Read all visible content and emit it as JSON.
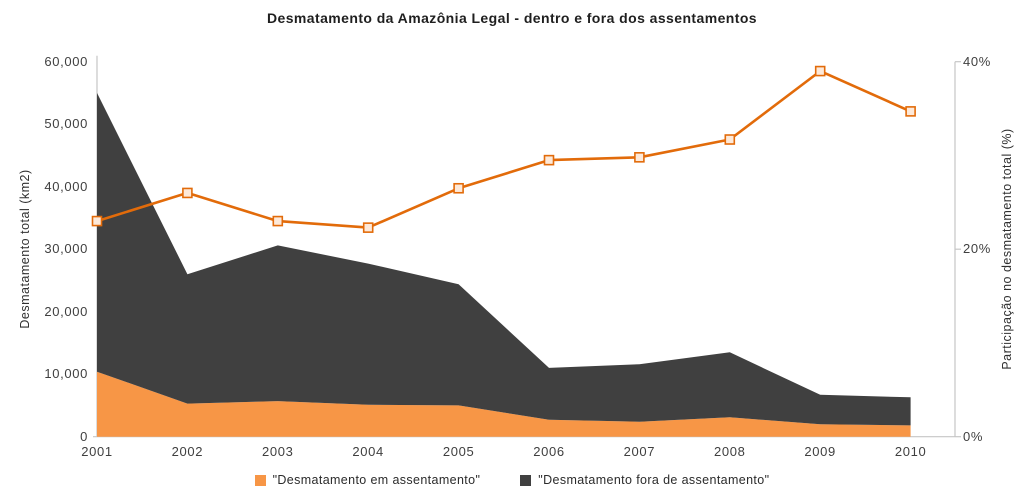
{
  "title": "Desmatamento da Amazônia Legal - dentro e fora dos assentamentos",
  "axes": {
    "left": {
      "title": "Desmatamento total (km2)",
      "ticks": [
        "60,000",
        "50,000",
        "40,000",
        "30,000",
        "20,000",
        "10,000",
        "0"
      ],
      "tick_values": [
        60000,
        50000,
        40000,
        30000,
        20000,
        10000,
        0
      ]
    },
    "right": {
      "title": "Participação no desmatamento total (%)",
      "ticks": [
        "40%",
        "20%",
        "0%"
      ],
      "tick_values": [
        40,
        20,
        0
      ]
    },
    "x": {
      "ticks": [
        "2001",
        "2002",
        "2003",
        "2004",
        "2005",
        "2006",
        "2007",
        "2008",
        "2009",
        "2010"
      ]
    }
  },
  "legend": {
    "items": [
      {
        "label": "\"Desmatamento em assentamento\"",
        "color": "#F79646"
      },
      {
        "label": "\"Desmatamento fora de assentamento\"",
        "color": "#404040"
      }
    ]
  },
  "colors": {
    "area_em_assentamento": "#F79646",
    "area_fora_assentamento": "#404040",
    "line_participacao": "#E26B0A",
    "marker_fill": "#FDE9D9",
    "axis_line": "#C6C6C6"
  },
  "chart_data": {
    "type": "area",
    "subtype": "stacked-area-with-secondary-line",
    "title": "Desmatamento da Amazônia Legal - dentro e fora dos assentamentos",
    "categories": [
      "2001",
      "2002",
      "2003",
      "2004",
      "2005",
      "2006",
      "2007",
      "2008",
      "2009",
      "2010"
    ],
    "series": [
      {
        "name": "\"Desmatamento em assentamento\"",
        "type": "area",
        "stacked": true,
        "axis": "left",
        "color": "#F79646",
        "values": [
          10400,
          5300,
          5700,
          5100,
          5000,
          2700,
          2400,
          3100,
          2000,
          1800
        ]
      },
      {
        "name": "\"Desmatamento fora de assentamento\"",
        "type": "area",
        "stacked": true,
        "axis": "left",
        "color": "#404040",
        "values": [
          44600,
          20700,
          24900,
          22600,
          19400,
          8300,
          9200,
          10400,
          4700,
          4500
        ]
      },
      {
        "name": "Participação no desmatamento total (%)",
        "type": "line",
        "axis": "right",
        "color": "#E26B0A",
        "marker": "square",
        "values": [
          23.0,
          26.0,
          23.0,
          22.3,
          26.5,
          29.5,
          29.8,
          31.7,
          39.0,
          34.7
        ]
      }
    ],
    "stacked_totals": [
      55000,
      26000,
      30600,
      27700,
      24400,
      11000,
      11600,
      13500,
      6700,
      6300
    ],
    "xlabel": "",
    "ylabel_left": "Desmatamento total (km2)",
    "ylabel_right": "Participação no desmatamento total (%)",
    "ylim_left": [
      0,
      60000
    ],
    "ylim_right": [
      0,
      40
    ],
    "grid": false,
    "legend_position": "bottom-center"
  }
}
